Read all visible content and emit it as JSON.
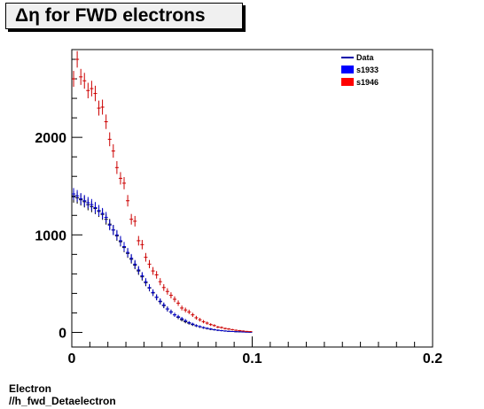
{
  "title": "Δη for FWD electrons",
  "footer": {
    "line1": "Electron",
    "line2": "//h_fwd_Detaelectron"
  },
  "chart_data": {
    "type": "scatter",
    "title": "Δη for FWD electrons",
    "xlabel": "",
    "ylabel": "",
    "xlim": [
      0,
      0.2
    ],
    "ylim": [
      -150,
      2900
    ],
    "x_ticks": [
      0,
      0.1,
      0.2
    ],
    "x_tick_labels": [
      "0",
      "0.1",
      "0.2"
    ],
    "y_ticks": [
      0,
      1000,
      2000
    ],
    "y_tick_labels": [
      "0",
      "1000",
      "2000"
    ],
    "grid": false,
    "legend_position": "top-right",
    "legend": [
      "Data",
      "s1933",
      "s1946"
    ],
    "colors": {
      "Data": "#000000",
      "s1933": "#0000cc",
      "s1946": "#cc0000"
    },
    "x": [
      0.001,
      0.003,
      0.005,
      0.007,
      0.009,
      0.011,
      0.013,
      0.015,
      0.017,
      0.019,
      0.021,
      0.023,
      0.025,
      0.027,
      0.029,
      0.031,
      0.033,
      0.035,
      0.037,
      0.039,
      0.041,
      0.043,
      0.045,
      0.047,
      0.049,
      0.051,
      0.053,
      0.055,
      0.057,
      0.059,
      0.061,
      0.063,
      0.065,
      0.067,
      0.069,
      0.071,
      0.073,
      0.075,
      0.077,
      0.079,
      0.081,
      0.083,
      0.085,
      0.087,
      0.089,
      0.091,
      0.093,
      0.095,
      0.097,
      0.099
    ],
    "series": [
      {
        "name": "Data",
        "values": [
          1390,
          1380,
          1360,
          1340,
          1310,
          1290,
          1270,
          1240,
          1210,
          1160,
          1110,
          1050,
          990,
          930,
          870,
          810,
          750,
          690,
          630,
          570,
          510,
          455,
          405,
          360,
          315,
          275,
          240,
          210,
          180,
          155,
          130,
          110,
          95,
          80,
          68,
          58,
          48,
          40,
          33,
          27,
          22,
          18,
          14,
          11,
          9,
          7,
          6,
          4,
          3,
          2
        ]
      },
      {
        "name": "s1933",
        "values": [
          1420,
          1400,
          1370,
          1350,
          1330,
          1310,
          1280,
          1250,
          1220,
          1180,
          1100,
          1050,
          1000,
          940,
          880,
          820,
          760,
          700,
          640,
          580,
          520,
          460,
          410,
          360,
          320,
          280,
          240,
          210,
          180,
          160,
          140,
          120,
          100,
          85,
          70,
          60,
          50,
          42,
          35,
          28,
          22,
          18,
          14,
          11,
          9,
          7,
          6,
          4,
          3,
          2
        ]
      },
      {
        "name": "s1946",
        "values": [
          2600,
          2800,
          2620,
          2580,
          2480,
          2500,
          2450,
          2300,
          2310,
          2160,
          1980,
          1860,
          1690,
          1580,
          1530,
          1350,
          1160,
          1140,
          940,
          900,
          770,
          700,
          630,
          590,
          520,
          460,
          420,
          380,
          340,
          300,
          250,
          230,
          210,
          180,
          150,
          130,
          110,
          95,
          80,
          70,
          55,
          50,
          40,
          35,
          28,
          22,
          18,
          14,
          10,
          8
        ]
      }
    ]
  }
}
